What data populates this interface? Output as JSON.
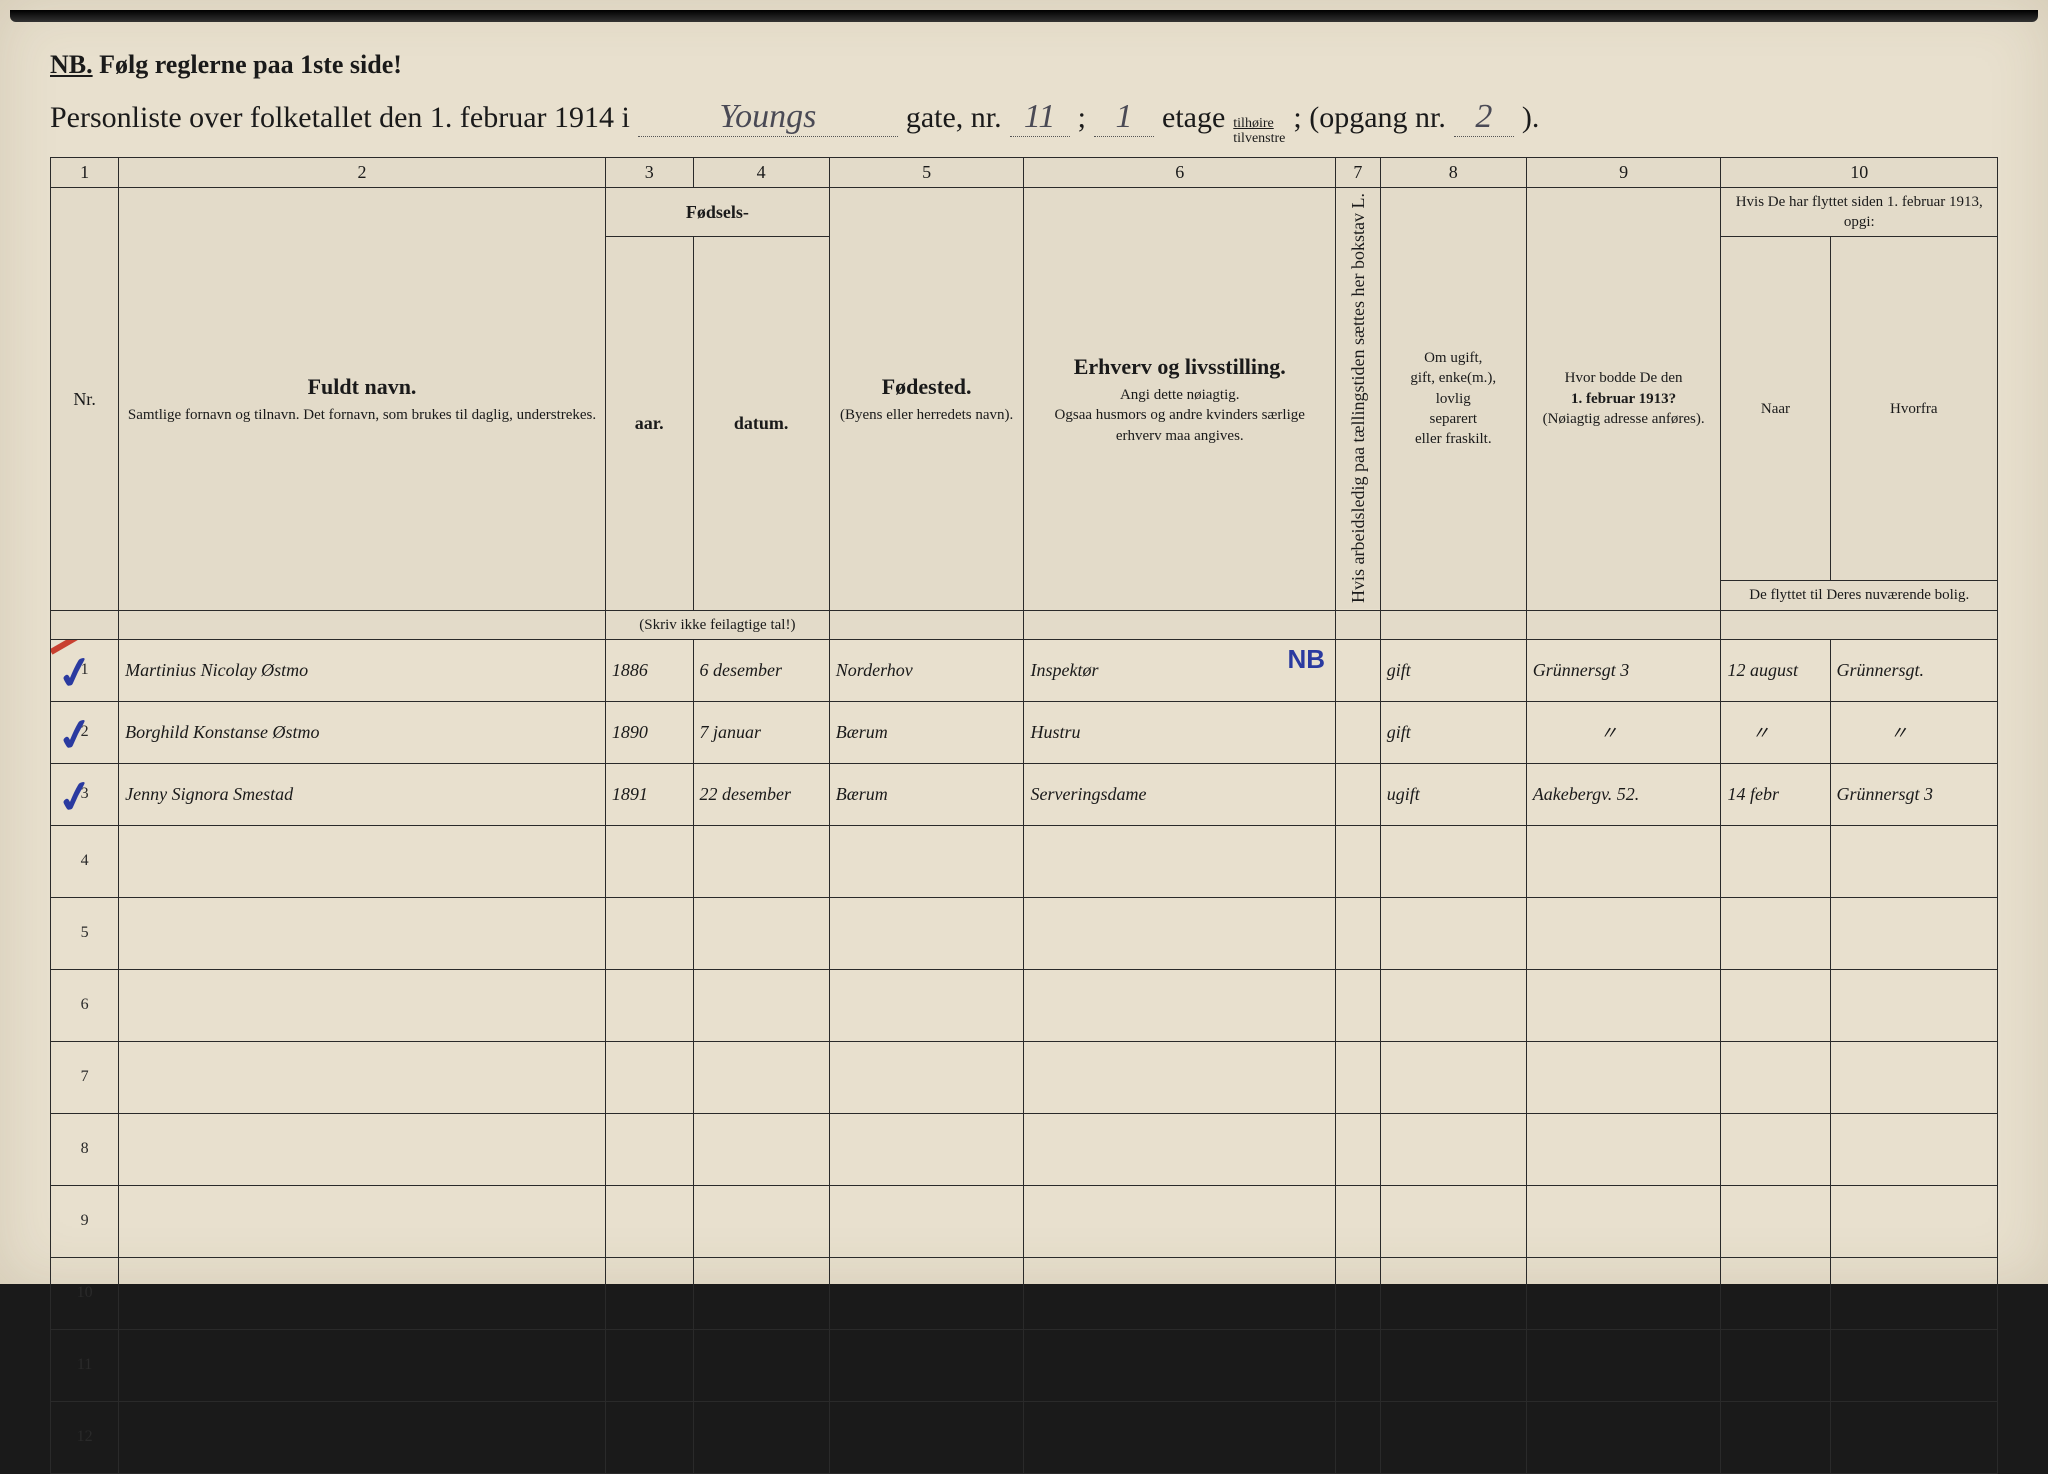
{
  "header": {
    "nb_prefix": "NB.",
    "nb_text": "Følg reglerne paa 1ste side!",
    "title_prefix": "Personliste over folketallet den 1. februar 1914 i",
    "street": "Youngs",
    "gate_label": "gate, nr.",
    "gate_nr": "11",
    "semicolon": ";",
    "etage_nr": "1",
    "etage_label": "etage",
    "tilhoire": "tilhøire",
    "tilvenstre": "tilvenstre",
    "opgang_label": "; (opgang nr.",
    "opgang_nr": "2",
    "close": ")."
  },
  "columns": {
    "nums": [
      "1",
      "2",
      "3",
      "4",
      "5",
      "6",
      "7",
      "8",
      "9",
      "10"
    ],
    "nr": "Nr.",
    "name_big": "Fuldt navn.",
    "name_small": "Samtlige fornavn og tilnavn. Det fornavn, som brukes til daglig, understrekes.",
    "fodsels": "Fødsels-",
    "aar": "aar.",
    "datum": "datum.",
    "fodsels_note": "(Skriv ikke feilagtige tal!)",
    "fodested": "Fødested.",
    "fodested_note": "(Byens eller herredets navn).",
    "erhverv": "Erhverv og livsstilling.",
    "erhverv_note1": "Angi dette nøiagtig.",
    "erhverv_note2": "Ogsaa husmors og andre kvinders særlige erhverv maa angives.",
    "col7": "Hvis arbeidsledig paa tællingstiden sættes her bokstav L.",
    "col8_1": "Om ugift,",
    "col8_2": "gift, enke(m.),",
    "col8_3": "lovlig",
    "col8_4": "separert",
    "col8_5": "eller fraskilt.",
    "col9_1": "Hvor bodde De den",
    "col9_2": "1. februar 1913?",
    "col9_3": "(Nøiagtig adresse anføres).",
    "col10_top": "Hvis De har flyttet siden 1. februar 1913, opgi:",
    "col10_naar": "Naar",
    "col10_hvorfra": "Hvorfra",
    "col10_bottom": "De flyttet til Deres nuværende bolig."
  },
  "rows": [
    {
      "nr": "1",
      "check": "✓",
      "red": true,
      "name": "Martinius Nicolay Østmo",
      "aar": "1886",
      "datum": "6 desember",
      "fodested": "Norderhov",
      "erhverv": "Inspektør",
      "annot": "NB",
      "col7": "",
      "status": "gift",
      "addr1913": "Grünnersgt 3",
      "naar": "12 august",
      "hvorfra": "Grünnersgt."
    },
    {
      "nr": "2",
      "check": "✓",
      "red": false,
      "name": "Borghild Konstanse Østmo",
      "aar": "1890",
      "datum": "7 januar",
      "fodested": "Bærum",
      "erhverv": "Hustru",
      "annot": "",
      "col7": "",
      "status": "gift",
      "addr1913": "〃",
      "naar": "〃",
      "hvorfra": "〃"
    },
    {
      "nr": "3",
      "check": "✓",
      "red": false,
      "name": "Jenny Signora Smestad",
      "aar": "1891",
      "datum": "22 desember",
      "fodested": "Bærum",
      "erhverv": "Serveringsdame",
      "annot": "",
      "col7": "",
      "status": "ugift",
      "addr1913": "Aakebergv. 52.",
      "naar": "14 febr",
      "hvorfra": "Grünnersgt 3"
    }
  ],
  "empty_rows": [
    "4",
    "5",
    "6",
    "7",
    "8",
    "9",
    "10",
    "11",
    "12"
  ],
  "colors": {
    "paper": "#e8e0ce",
    "ink": "#1a1a1a",
    "handwriting": "#3a3a45",
    "blue_pencil": "#2a3aa0",
    "red_pencil": "#c84030"
  },
  "col_widths_pct": [
    3.5,
    25,
    4.5,
    7,
    10,
    16,
    2.3,
    7.5,
    10,
    5.6,
    8.6
  ]
}
